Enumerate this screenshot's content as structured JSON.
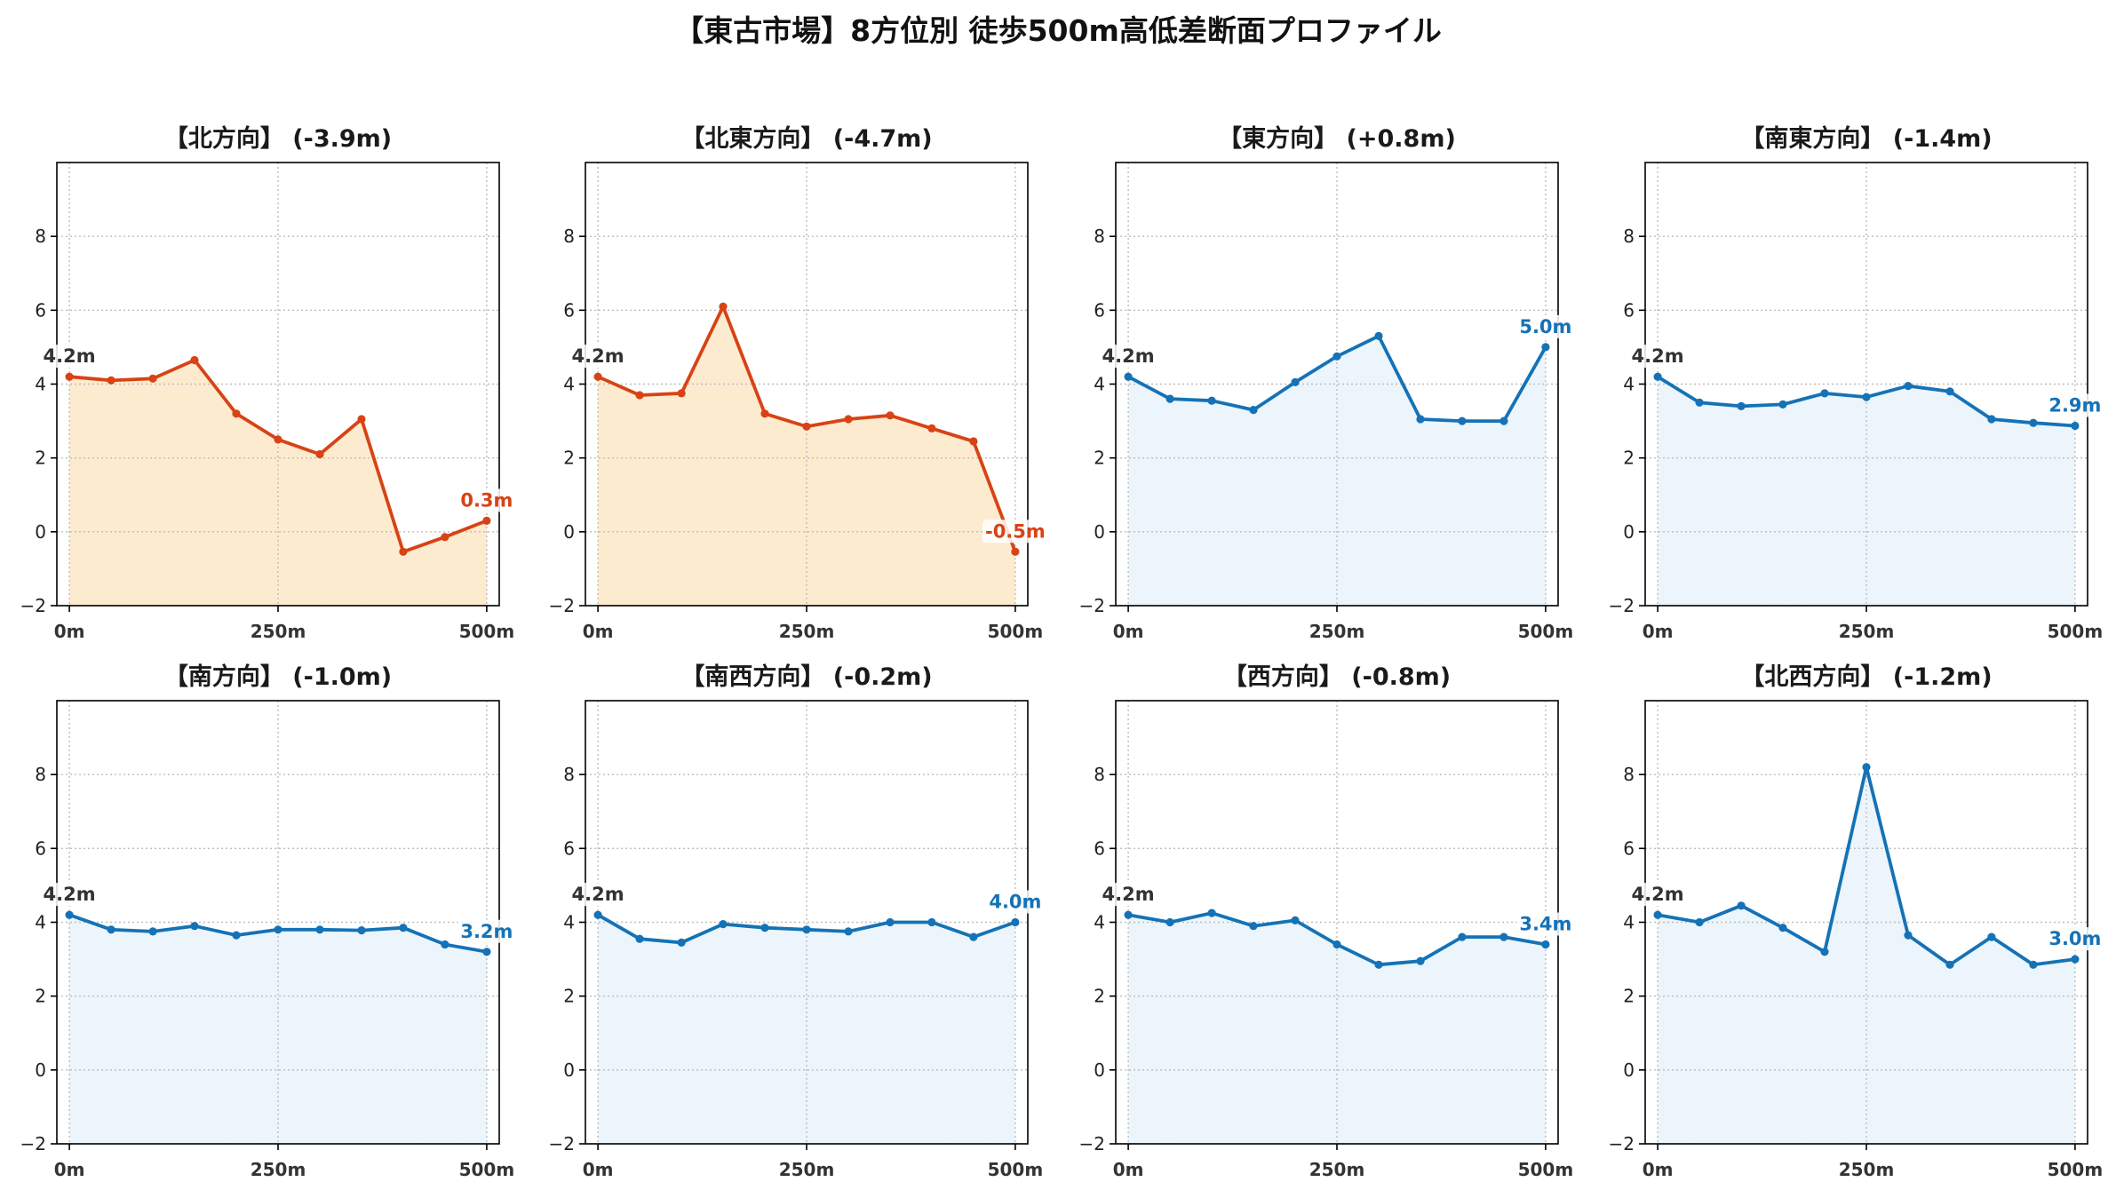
{
  "suptitle": "【東古市場】8方位別 徒歩500m高低差断面プロファイル",
  "colors": {
    "start_label": "#333333"
  },
  "chart_data": [
    {
      "type": "area",
      "title": "【北方向】 (-3.9m)",
      "x": [
        0,
        50,
        100,
        150,
        200,
        250,
        300,
        350,
        400,
        450,
        500
      ],
      "y": [
        4.2,
        4.1,
        4.15,
        4.65,
        3.2,
        2.5,
        2.1,
        3.05,
        -0.54,
        -0.14,
        0.3
      ],
      "xlim": [
        -15,
        515
      ],
      "ylim": [
        -2,
        10
      ],
      "xticks": [
        0,
        250,
        500
      ],
      "xtick_labels": [
        "0m",
        "250m",
        "500m"
      ],
      "yticks": [
        -2,
        0,
        2,
        4,
        6,
        8
      ],
      "ytick_labels": [
        "−2",
        "0",
        "2",
        "4",
        "6",
        "8"
      ],
      "grid": true,
      "color": "#d84315",
      "fill_color": "#fdebd0",
      "start_label": "4.2m",
      "end_label": "0.3m"
    },
    {
      "type": "area",
      "title": "【北東方向】 (-4.7m)",
      "x": [
        0,
        50,
        100,
        150,
        200,
        250,
        300,
        350,
        400,
        450,
        500
      ],
      "y": [
        4.2,
        3.7,
        3.75,
        6.1,
        3.2,
        2.85,
        3.05,
        3.15,
        2.8,
        2.45,
        -0.54
      ],
      "xlim": [
        -15,
        515
      ],
      "ylim": [
        -2,
        10
      ],
      "xticks": [
        0,
        250,
        500
      ],
      "xtick_labels": [
        "0m",
        "250m",
        "500m"
      ],
      "yticks": [
        -2,
        0,
        2,
        4,
        6,
        8
      ],
      "ytick_labels": [
        "−2",
        "0",
        "2",
        "4",
        "6",
        "8"
      ],
      "grid": true,
      "color": "#d84315",
      "fill_color": "#fdebd0",
      "start_label": "4.2m",
      "end_label": "-0.5m"
    },
    {
      "type": "area",
      "title": "【東方向】 (+0.8m)",
      "x": [
        0,
        50,
        100,
        150,
        200,
        250,
        300,
        350,
        400,
        450,
        500
      ],
      "y": [
        4.2,
        3.6,
        3.55,
        3.3,
        4.05,
        4.75,
        5.3,
        3.05,
        3.0,
        3.0,
        5.0
      ],
      "xlim": [
        -15,
        515
      ],
      "ylim": [
        -2,
        10
      ],
      "xticks": [
        0,
        250,
        500
      ],
      "xtick_labels": [
        "0m",
        "250m",
        "500m"
      ],
      "yticks": [
        -2,
        0,
        2,
        4,
        6,
        8
      ],
      "ytick_labels": [
        "−2",
        "0",
        "2",
        "4",
        "6",
        "8"
      ],
      "grid": true,
      "color": "#1572b6",
      "fill_color": "#ebf5fb",
      "start_label": "4.2m",
      "end_label": "5.0m"
    },
    {
      "type": "area",
      "title": "【南東方向】 (-1.4m)",
      "x": [
        0,
        50,
        100,
        150,
        200,
        250,
        300,
        350,
        400,
        450,
        500
      ],
      "y": [
        4.2,
        3.5,
        3.4,
        3.45,
        3.75,
        3.65,
        3.95,
        3.8,
        3.05,
        2.95,
        2.87
      ],
      "xlim": [
        -15,
        515
      ],
      "ylim": [
        -2,
        10
      ],
      "xticks": [
        0,
        250,
        500
      ],
      "xtick_labels": [
        "0m",
        "250m",
        "500m"
      ],
      "yticks": [
        -2,
        0,
        2,
        4,
        6,
        8
      ],
      "ytick_labels": [
        "−2",
        "0",
        "2",
        "4",
        "6",
        "8"
      ],
      "grid": true,
      "color": "#1572b6",
      "fill_color": "#ebf5fb",
      "start_label": "4.2m",
      "end_label": "2.9m"
    },
    {
      "type": "area",
      "title": "【南方向】 (-1.0m)",
      "x": [
        0,
        50,
        100,
        150,
        200,
        250,
        300,
        350,
        400,
        450,
        500
      ],
      "y": [
        4.2,
        3.8,
        3.75,
        3.9,
        3.65,
        3.8,
        3.8,
        3.78,
        3.85,
        3.4,
        3.2
      ],
      "xlim": [
        -15,
        515
      ],
      "ylim": [
        -2,
        10
      ],
      "xticks": [
        0,
        250,
        500
      ],
      "xtick_labels": [
        "0m",
        "250m",
        "500m"
      ],
      "yticks": [
        -2,
        0,
        2,
        4,
        6,
        8
      ],
      "ytick_labels": [
        "−2",
        "0",
        "2",
        "4",
        "6",
        "8"
      ],
      "grid": true,
      "color": "#1572b6",
      "fill_color": "#ebf5fb",
      "start_label": "4.2m",
      "end_label": "3.2m"
    },
    {
      "type": "area",
      "title": "【南西方向】 (-0.2m)",
      "x": [
        0,
        50,
        100,
        150,
        200,
        250,
        300,
        350,
        400,
        450,
        500
      ],
      "y": [
        4.2,
        3.55,
        3.45,
        3.95,
        3.85,
        3.8,
        3.75,
        4.0,
        4.0,
        3.6,
        4.0
      ],
      "xlim": [
        -15,
        515
      ],
      "ylim": [
        -2,
        10
      ],
      "xticks": [
        0,
        250,
        500
      ],
      "xtick_labels": [
        "0m",
        "250m",
        "500m"
      ],
      "yticks": [
        -2,
        0,
        2,
        4,
        6,
        8
      ],
      "ytick_labels": [
        "−2",
        "0",
        "2",
        "4",
        "6",
        "8"
      ],
      "grid": true,
      "color": "#1572b6",
      "fill_color": "#ebf5fb",
      "start_label": "4.2m",
      "end_label": "4.0m"
    },
    {
      "type": "area",
      "title": "【西方向】 (-0.8m)",
      "x": [
        0,
        50,
        100,
        150,
        200,
        250,
        300,
        350,
        400,
        450,
        500
      ],
      "y": [
        4.2,
        4.0,
        4.25,
        3.9,
        4.05,
        3.4,
        2.85,
        2.95,
        3.6,
        3.6,
        3.4
      ],
      "xlim": [
        -15,
        515
      ],
      "ylim": [
        -2,
        10
      ],
      "xticks": [
        0,
        250,
        500
      ],
      "xtick_labels": [
        "0m",
        "250m",
        "500m"
      ],
      "yticks": [
        -2,
        0,
        2,
        4,
        6,
        8
      ],
      "ytick_labels": [
        "−2",
        "0",
        "2",
        "4",
        "6",
        "8"
      ],
      "grid": true,
      "color": "#1572b6",
      "fill_color": "#ebf5fb",
      "start_label": "4.2m",
      "end_label": "3.4m"
    },
    {
      "type": "area",
      "title": "【北西方向】 (-1.2m)",
      "x": [
        0,
        50,
        100,
        150,
        200,
        250,
        300,
        350,
        400,
        450,
        500
      ],
      "y": [
        4.2,
        4.0,
        4.45,
        3.85,
        3.2,
        8.2,
        3.65,
        2.85,
        3.6,
        2.85,
        3.0
      ],
      "xlim": [
        -15,
        515
      ],
      "ylim": [
        -2,
        10
      ],
      "xticks": [
        0,
        250,
        500
      ],
      "xtick_labels": [
        "0m",
        "250m",
        "500m"
      ],
      "yticks": [
        -2,
        0,
        2,
        4,
        6,
        8
      ],
      "ytick_labels": [
        "−2",
        "0",
        "2",
        "4",
        "6",
        "8"
      ],
      "grid": true,
      "color": "#1572b6",
      "fill_color": "#ebf5fb",
      "start_label": "4.2m",
      "end_label": "3.0m"
    }
  ]
}
